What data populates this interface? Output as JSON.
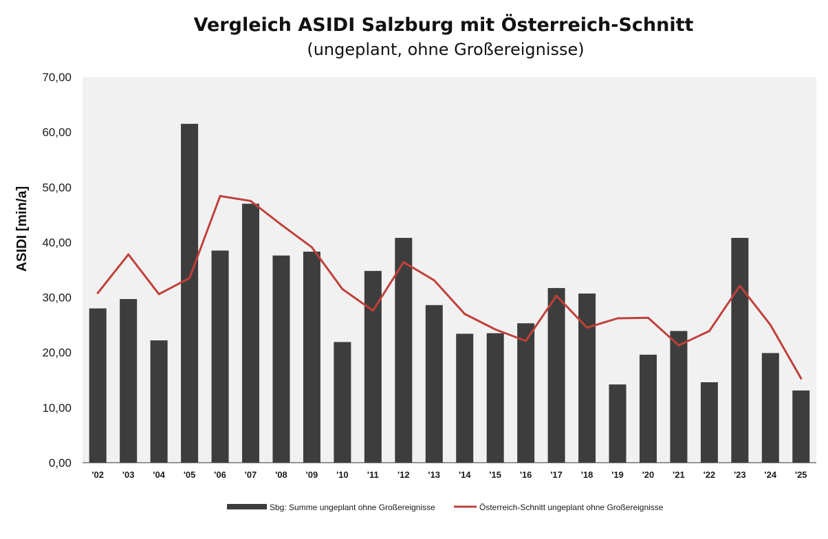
{
  "chart_data": {
    "type": "bar",
    "title": "Vergleich ASIDI Salzburg mit Österreich-Schnitt",
    "subtitle": "(ungeplant, ohne Großereignisse)",
    "ylabel": "ASIDI [min/a]",
    "xlabel": "",
    "ylim": [
      0,
      70
    ],
    "yticks": [
      "0,00",
      "10,00",
      "20,00",
      "30,00",
      "40,00",
      "50,00",
      "60,00",
      "70,00"
    ],
    "grid": false,
    "legend_position": "bottom",
    "categories": [
      "'02",
      "'03",
      "'04",
      "'05",
      "'06",
      "'07",
      "'08",
      "'09",
      "'10",
      "'11",
      "'12",
      "'13",
      "'14",
      "'15",
      "'16",
      "'17",
      "'18",
      "'19",
      "'20",
      "'21",
      "'22",
      "'23",
      "'24",
      "'25"
    ],
    "series": [
      {
        "name": "Sbg: Summe ungeplant ohne Großereignisse",
        "type": "bar",
        "color": "#3d3d3d",
        "values": [
          28.0,
          29.7,
          22.2,
          61.5,
          38.5,
          47.0,
          37.6,
          38.3,
          21.9,
          34.8,
          40.8,
          28.6,
          23.4,
          23.5,
          25.3,
          31.7,
          30.7,
          14.2,
          19.6,
          23.9,
          14.6,
          40.8,
          19.9,
          13.1
        ]
      },
      {
        "name": "Österreich-Schnitt ungeplant ohne Großereignisse",
        "type": "line",
        "color": "#c0403a",
        "values": [
          30.8,
          37.8,
          30.6,
          33.5,
          48.4,
          47.5,
          43.2,
          39.1,
          31.5,
          27.6,
          36.4,
          33.1,
          27.0,
          24.2,
          22.1,
          30.3,
          24.5,
          26.2,
          26.3,
          21.3,
          23.9,
          32.1,
          25.0,
          15.3
        ]
      }
    ]
  },
  "colors": {
    "plot_background": "#f1f1f1",
    "axis": "#333333"
  }
}
